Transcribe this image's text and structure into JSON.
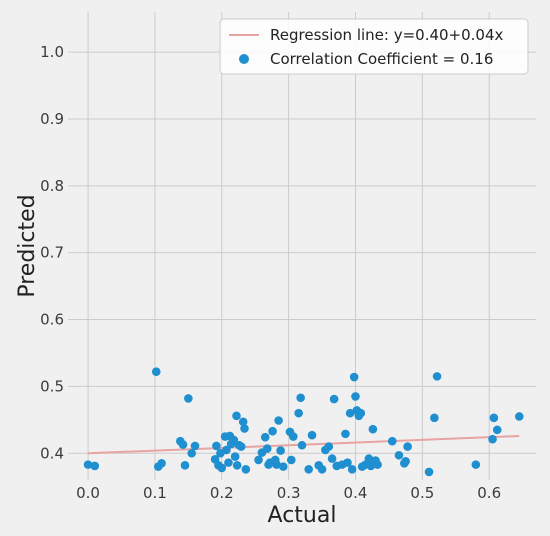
{
  "chart_data": {
    "type": "scatter",
    "xlabel": "Actual",
    "ylabel": "Predicted",
    "xlim": [
      -0.03,
      0.67
    ],
    "ylim": [
      0.36,
      1.06
    ],
    "x_ticks": [
      0.0,
      0.1,
      0.2,
      0.3,
      0.4,
      0.5,
      0.6
    ],
    "x_tick_labels": [
      "0.0",
      "0.1",
      "0.2",
      "0.3",
      "0.4",
      "0.5",
      "0.6"
    ],
    "y_ticks": [
      0.4,
      0.5,
      0.6,
      0.7,
      0.8,
      0.9,
      1.0
    ],
    "y_tick_labels": [
      "0.4",
      "0.5",
      "0.6",
      "0.7",
      "0.8",
      "0.9",
      "1.0"
    ],
    "grid": true,
    "legend_position": "top-right",
    "colors": {
      "points": "#1f8fd0",
      "line": "#e8a3a3",
      "plot_bg": "#f0f0f0",
      "grid": "#cbcbcb"
    },
    "regression_line": {
      "label": "Regression line: y=0.40+0.04x",
      "intercept": 0.4,
      "slope": 0.04,
      "x_range": [
        0.0,
        0.645
      ]
    },
    "scatter": {
      "label": "Correlation Coefficient = 0.16",
      "points": [
        [
          0.0,
          0.383
        ],
        [
          0.01,
          0.381
        ],
        [
          0.102,
          0.522
        ],
        [
          0.105,
          0.38
        ],
        [
          0.11,
          0.385
        ],
        [
          0.138,
          0.418
        ],
        [
          0.142,
          0.413
        ],
        [
          0.145,
          0.382
        ],
        [
          0.15,
          0.482
        ],
        [
          0.155,
          0.4
        ],
        [
          0.16,
          0.411
        ],
        [
          0.19,
          0.391
        ],
        [
          0.192,
          0.411
        ],
        [
          0.195,
          0.382
        ],
        [
          0.198,
          0.4
        ],
        [
          0.2,
          0.378
        ],
        [
          0.205,
          0.425
        ],
        [
          0.207,
          0.405
        ],
        [
          0.21,
          0.386
        ],
        [
          0.212,
          0.426
        ],
        [
          0.214,
          0.414
        ],
        [
          0.218,
          0.42
        ],
        [
          0.22,
          0.395
        ],
        [
          0.222,
          0.456
        ],
        [
          0.223,
          0.382
        ],
        [
          0.226,
          0.412
        ],
        [
          0.229,
          0.41
        ],
        [
          0.232,
          0.447
        ],
        [
          0.234,
          0.437
        ],
        [
          0.236,
          0.376
        ],
        [
          0.255,
          0.39
        ],
        [
          0.26,
          0.401
        ],
        [
          0.265,
          0.424
        ],
        [
          0.268,
          0.407
        ],
        [
          0.27,
          0.383
        ],
        [
          0.272,
          0.386
        ],
        [
          0.276,
          0.433
        ],
        [
          0.28,
          0.39
        ],
        [
          0.282,
          0.383
        ],
        [
          0.285,
          0.449
        ],
        [
          0.288,
          0.404
        ],
        [
          0.292,
          0.38
        ],
        [
          0.302,
          0.432
        ],
        [
          0.304,
          0.39
        ],
        [
          0.307,
          0.425
        ],
        [
          0.315,
          0.46
        ],
        [
          0.318,
          0.483
        ],
        [
          0.32,
          0.412
        ],
        [
          0.33,
          0.376
        ],
        [
          0.335,
          0.427
        ],
        [
          0.345,
          0.382
        ],
        [
          0.35,
          0.376
        ],
        [
          0.355,
          0.405
        ],
        [
          0.36,
          0.41
        ],
        [
          0.365,
          0.392
        ],
        [
          0.368,
          0.481
        ],
        [
          0.372,
          0.381
        ],
        [
          0.38,
          0.383
        ],
        [
          0.385,
          0.429
        ],
        [
          0.388,
          0.386
        ],
        [
          0.392,
          0.46
        ],
        [
          0.395,
          0.376
        ],
        [
          0.398,
          0.514
        ],
        [
          0.4,
          0.485
        ],
        [
          0.402,
          0.464
        ],
        [
          0.405,
          0.456
        ],
        [
          0.408,
          0.46
        ],
        [
          0.41,
          0.38
        ],
        [
          0.415,
          0.383
        ],
        [
          0.42,
          0.392
        ],
        [
          0.423,
          0.381
        ],
        [
          0.426,
          0.436
        ],
        [
          0.43,
          0.389
        ],
        [
          0.433,
          0.383
        ],
        [
          0.455,
          0.418
        ],
        [
          0.465,
          0.397
        ],
        [
          0.473,
          0.385
        ],
        [
          0.475,
          0.388
        ],
        [
          0.478,
          0.41
        ],
        [
          0.51,
          0.372
        ],
        [
          0.518,
          0.453
        ],
        [
          0.522,
          0.515
        ],
        [
          0.58,
          0.383
        ],
        [
          0.605,
          0.421
        ],
        [
          0.607,
          0.453
        ],
        [
          0.612,
          0.435
        ],
        [
          0.645,
          0.455
        ]
      ]
    }
  }
}
